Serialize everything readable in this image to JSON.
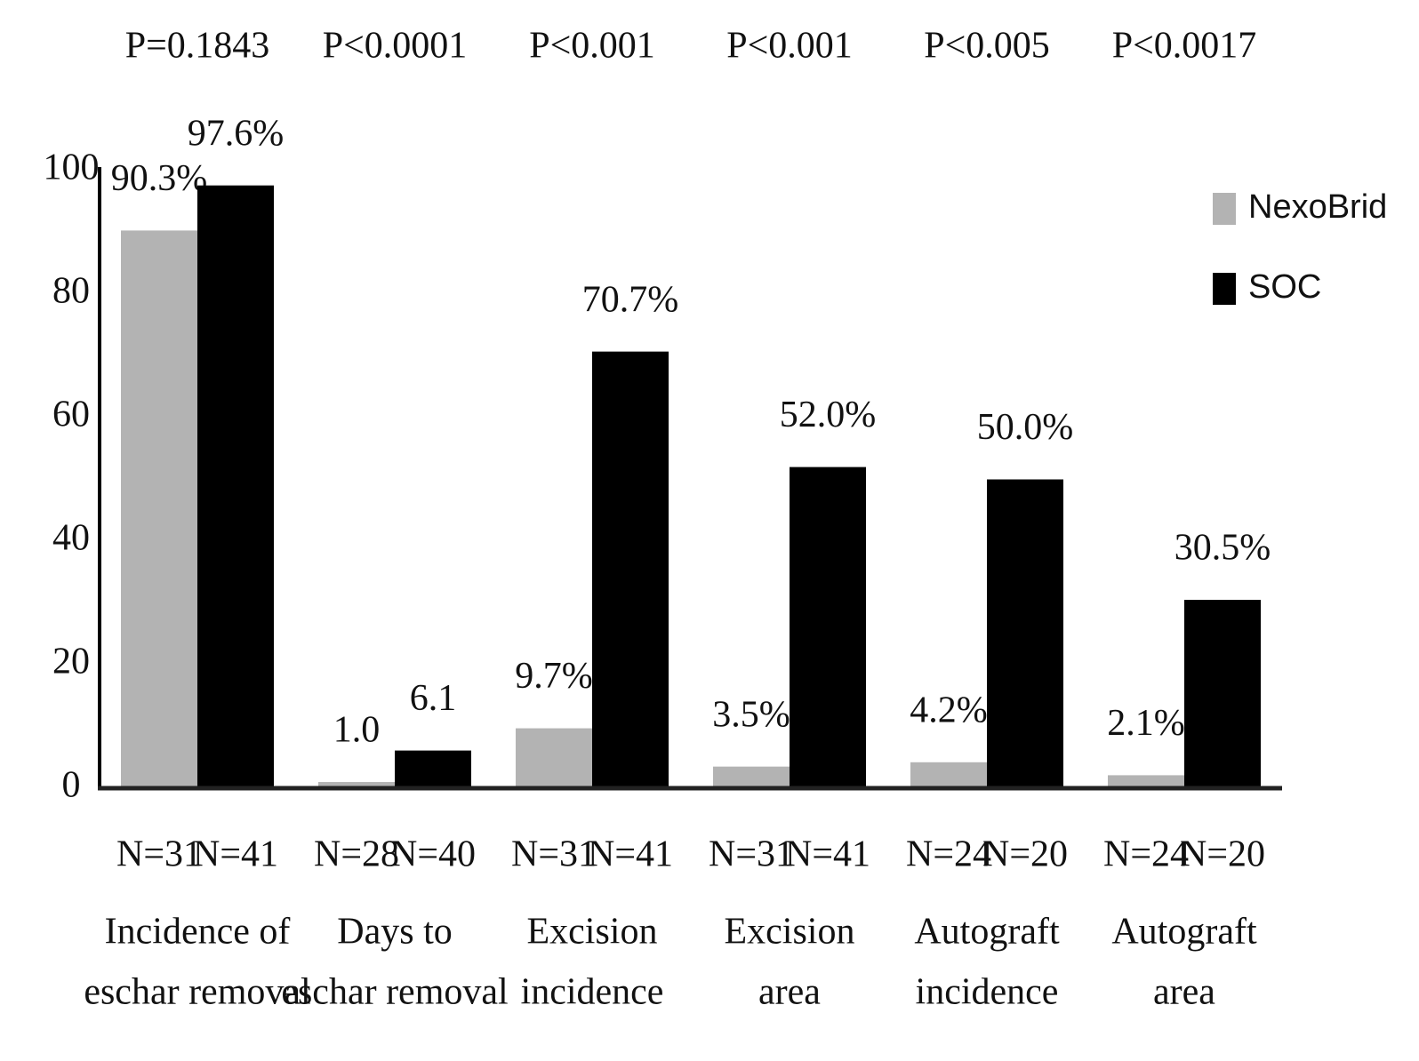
{
  "chart_data": {
    "type": "bar",
    "categories": [
      [
        "Incidence of",
        "eschar removal"
      ],
      [
        "Days to",
        "eschar removal"
      ],
      [
        "Excision",
        "incidence"
      ],
      [
        "Excision",
        "area"
      ],
      [
        "Autograft",
        "incidence"
      ],
      [
        "Autograft",
        "area"
      ]
    ],
    "p_values": [
      "P=0.1843",
      "P<0.0001",
      "P<0.001",
      "P<0.001",
      "P<0.005",
      "P<0.0017"
    ],
    "series": [
      {
        "name": "NexoBrid",
        "color": "#b3b3b3",
        "values": [
          90.3,
          1.0,
          9.7,
          3.5,
          4.2,
          2.1
        ],
        "value_labels": [
          "90.3%",
          "1.0",
          "9.7%",
          "3.5%",
          "4.2%",
          "2.1%"
        ],
        "n_labels": [
          "N=31",
          "N=28",
          "N=31",
          "N=31",
          "N=24",
          "N=24"
        ]
      },
      {
        "name": "SOC",
        "color": "#000000",
        "values": [
          97.6,
          6.1,
          70.7,
          52.0,
          50.0,
          30.5
        ],
        "value_labels": [
          "97.6%",
          "6.1",
          "70.7%",
          "52.0%",
          "50.0%",
          "30.5%"
        ],
        "n_labels": [
          "N=41",
          "N=40",
          "N=41",
          "N=41",
          "N=20",
          "N=20"
        ]
      }
    ],
    "ylim": [
      0,
      100
    ],
    "yticks": [
      0,
      20,
      40,
      60,
      80,
      100
    ],
    "grid": false,
    "legend": "upper right"
  }
}
